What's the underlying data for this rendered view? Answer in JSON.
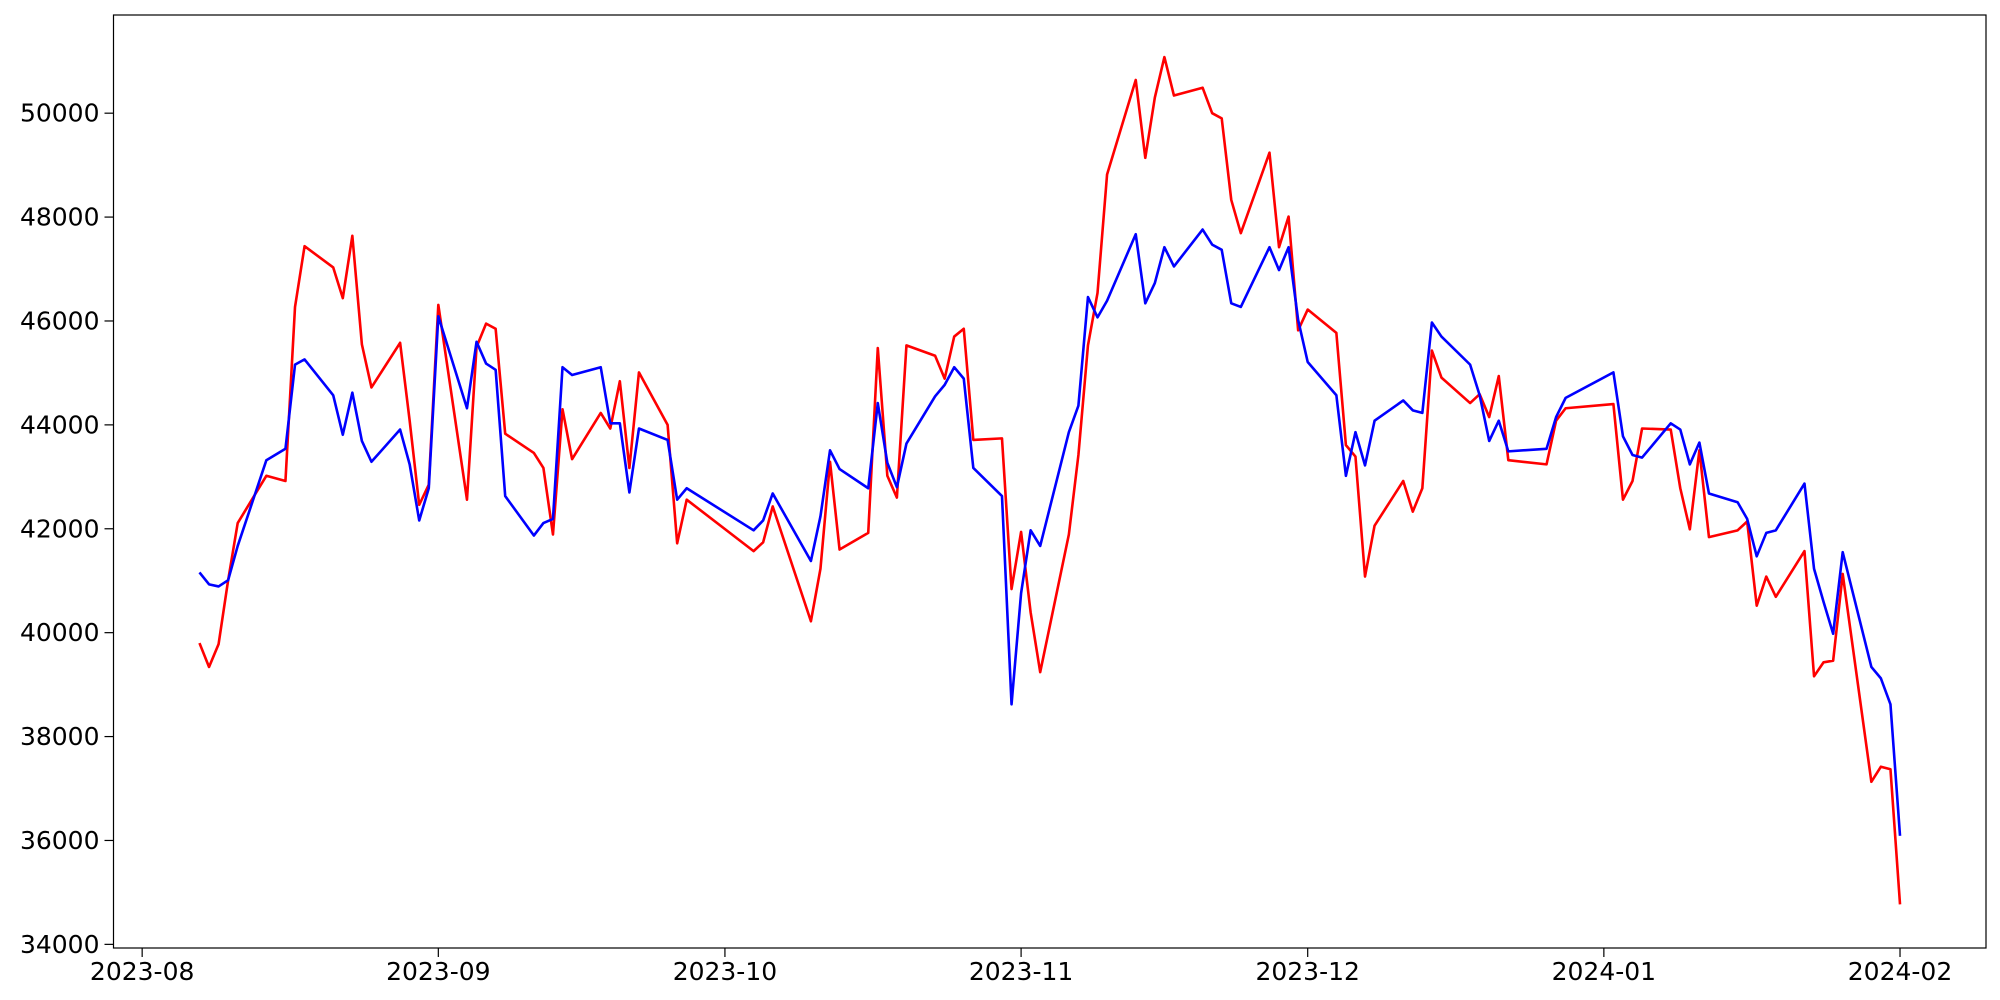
{
  "chart_data": {
    "type": "line",
    "x": [
      "2023-08-07",
      "2023-08-08",
      "2023-08-09",
      "2023-08-10",
      "2023-08-11",
      "2023-08-14",
      "2023-08-16",
      "2023-08-17",
      "2023-08-18",
      "2023-08-21",
      "2023-08-22",
      "2023-08-23",
      "2023-08-24",
      "2023-08-25",
      "2023-08-28",
      "2023-08-29",
      "2023-08-30",
      "2023-08-31",
      "2023-09-01",
      "2023-09-04",
      "2023-09-05",
      "2023-09-06",
      "2023-09-07",
      "2023-09-08",
      "2023-09-11",
      "2023-09-12",
      "2023-09-13",
      "2023-09-14",
      "2023-09-15",
      "2023-09-18",
      "2023-09-19",
      "2023-09-20",
      "2023-09-21",
      "2023-09-22",
      "2023-09-25",
      "2023-09-26",
      "2023-09-27",
      "2023-10-04",
      "2023-10-05",
      "2023-10-06",
      "2023-10-10",
      "2023-10-11",
      "2023-10-12",
      "2023-10-13",
      "2023-10-16",
      "2023-10-17",
      "2023-10-18",
      "2023-10-19",
      "2023-10-20",
      "2023-10-23",
      "2023-10-24",
      "2023-10-25",
      "2023-10-26",
      "2023-10-27",
      "2023-10-30",
      "2023-10-31",
      "2023-11-01",
      "2023-11-02",
      "2023-11-03",
      "2023-11-06",
      "2023-11-07",
      "2023-11-08",
      "2023-11-09",
      "2023-11-10",
      "2023-11-13",
      "2023-11-14",
      "2023-11-15",
      "2023-11-16",
      "2023-11-17",
      "2023-11-20",
      "2023-11-21",
      "2023-11-22",
      "2023-11-23",
      "2023-11-24",
      "2023-11-27",
      "2023-11-28",
      "2023-11-29",
      "2023-11-30",
      "2023-12-01",
      "2023-12-04",
      "2023-12-05",
      "2023-12-06",
      "2023-12-07",
      "2023-12-08",
      "2023-12-11",
      "2023-12-12",
      "2023-12-13",
      "2023-12-14",
      "2023-12-15",
      "2023-12-18",
      "2023-12-19",
      "2023-12-20",
      "2023-12-21",
      "2023-12-22",
      "2023-12-26",
      "2023-12-27",
      "2023-12-28",
      "2024-01-02",
      "2024-01-03",
      "2024-01-04",
      "2024-01-05",
      "2024-01-08",
      "2024-01-09",
      "2024-01-10",
      "2024-01-11",
      "2024-01-12",
      "2024-01-15",
      "2024-01-16",
      "2024-01-17",
      "2024-01-18",
      "2024-01-19",
      "2024-01-22",
      "2024-01-23",
      "2024-01-24",
      "2024-01-25",
      "2024-01-26",
      "2024-01-29",
      "2024-01-30",
      "2024-01-31",
      "2024-02-01"
    ],
    "series": [
      {
        "color": "#ff0000",
        "values": [
          39800,
          39340,
          39780,
          41010,
          42110,
          43020,
          42920,
          46270,
          47440,
          47030,
          46440,
          47640,
          45550,
          44720,
          45580,
          44080,
          42460,
          42850,
          46310,
          42560,
          45500,
          45950,
          45850,
          43830,
          43460,
          43170,
          41890,
          44300,
          43340,
          44230,
          43930,
          44840,
          43170,
          45010,
          44000,
          41720,
          42560,
          41570,
          41740,
          42430,
          40220,
          41230,
          43290,
          41600,
          41920,
          45480,
          43020,
          42600,
          45530,
          45330,
          44890,
          45700,
          45850,
          43710,
          43740,
          40840,
          41940,
          40390,
          39240,
          41890,
          43420,
          45530,
          46540,
          48820,
          50640,
          49140,
          50300,
          51080,
          50340,
          50490,
          50000,
          49900,
          48330,
          47690,
          49240,
          47420,
          48010,
          45820,
          46220,
          45770,
          43610,
          43390,
          41080,
          42060,
          42920,
          42330,
          42780,
          45430,
          44910,
          44420,
          44590,
          44150,
          44940,
          43320,
          43240,
          44080,
          44320,
          44400,
          42560,
          42920,
          43930,
          43910,
          42780,
          41990,
          43510,
          41840,
          41970,
          42140,
          40520,
          41080,
          40690,
          41570,
          39160,
          39430,
          39460,
          41130,
          37130,
          37420,
          37370,
          34770
        ]
      },
      {
        "color": "#0000ff",
        "values": [
          41160,
          40930,
          40890,
          41010,
          41670,
          43320,
          43540,
          45160,
          45260,
          44570,
          43810,
          44620,
          43690,
          43290,
          43910,
          43240,
          42160,
          42780,
          46090,
          44320,
          45600,
          45180,
          45060,
          42630,
          41870,
          42110,
          42190,
          45110,
          44960,
          45110,
          44030,
          44030,
          42700,
          43930,
          43710,
          42560,
          42780,
          41970,
          42160,
          42680,
          41380,
          42240,
          43510,
          43150,
          42780,
          44420,
          43270,
          42800,
          43640,
          44550,
          44770,
          45110,
          44890,
          43170,
          42630,
          38620,
          40760,
          41970,
          41670,
          43860,
          44370,
          46460,
          46070,
          46390,
          47670,
          46340,
          46730,
          47420,
          47050,
          47760,
          47470,
          47370,
          46340,
          46270,
          47420,
          46980,
          47420,
          46020,
          45210,
          44570,
          43020,
          43860,
          43220,
          44080,
          44470,
          44280,
          44230,
          45970,
          45700,
          45160,
          44570,
          43690,
          44080,
          43490,
          43540,
          44150,
          44520,
          45010,
          43780,
          43420,
          43370,
          44030,
          43910,
          43240,
          43660,
          42680,
          42510,
          42190,
          41470,
          41920,
          41970,
          42870,
          41230,
          40590,
          39980,
          41550,
          39340,
          39120,
          38620,
          36090
        ]
      }
    ],
    "xlim": [
      "2023-07-29",
      "2024-02-10"
    ],
    "xticks": [
      {
        "value": "2023-08-01",
        "label": "2023-08"
      },
      {
        "value": "2023-09-01",
        "label": "2023-09"
      },
      {
        "value": "2023-10-01",
        "label": "2023-10"
      },
      {
        "value": "2023-11-01",
        "label": "2023-11"
      },
      {
        "value": "2023-12-01",
        "label": "2023-12"
      },
      {
        "value": "2024-01-01",
        "label": "2024-01"
      },
      {
        "value": "2024-02-01",
        "label": "2024-02"
      }
    ],
    "ylim": [
      33930,
      51890
    ],
    "yticks": [
      34000,
      36000,
      38000,
      40000,
      42000,
      44000,
      46000,
      48000,
      50000
    ],
    "grid": false
  }
}
